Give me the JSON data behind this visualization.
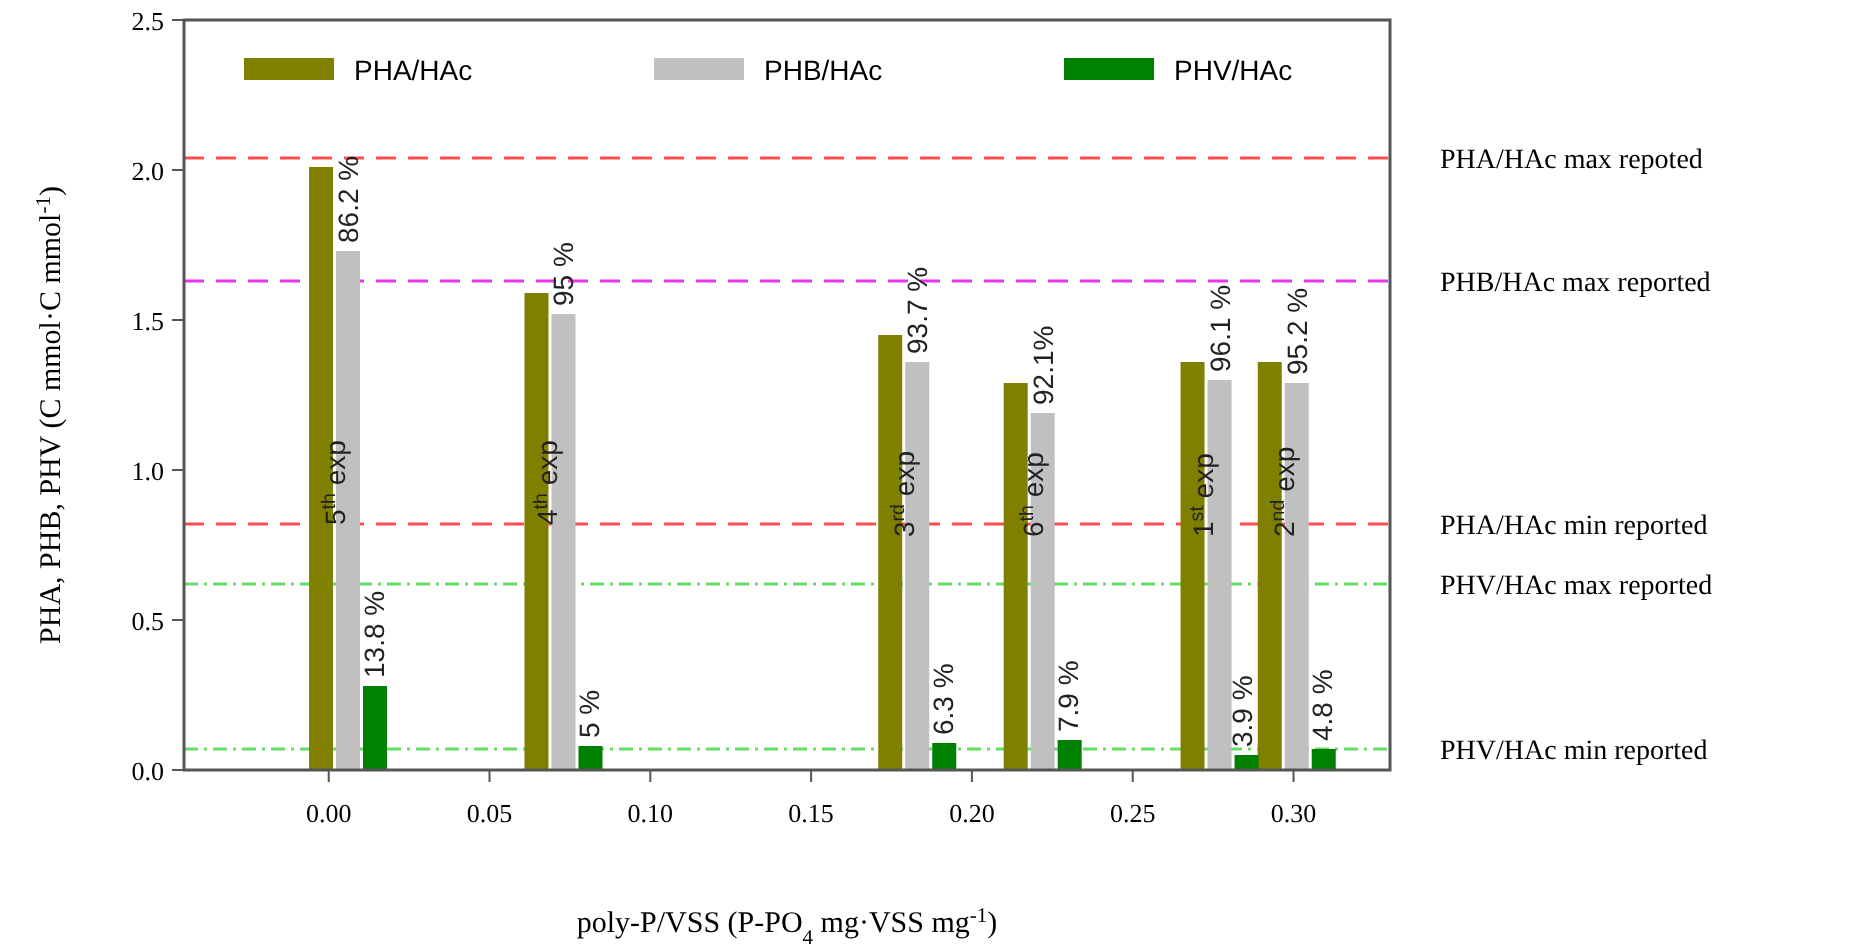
{
  "chart_data": {
    "type": "bar",
    "xlabel": "poly-P/VSS (P-PO$_{4}$ mg·VSS mg$^{-1}$)",
    "ylabel": "PHA, PHB, PHV (C mmol·C mmol$^{-1}$)",
    "x": [
      0.006,
      0.073,
      0.183,
      0.222,
      0.277,
      0.301
    ],
    "series": [
      {
        "name": "PHA/HAc",
        "color": "#808000",
        "values": [
          2.01,
          1.59,
          1.45,
          1.29,
          1.36,
          1.36
        ]
      },
      {
        "name": "PHB/HAc",
        "color": "#c0c0c0",
        "values": [
          1.73,
          1.52,
          1.36,
          1.19,
          1.3,
          1.29
        ]
      },
      {
        "name": "PHV/HAc",
        "color": "#008000",
        "values": [
          0.28,
          0.08,
          0.09,
          0.1,
          0.05,
          0.07
        ]
      }
    ],
    "xlim": [
      -0.045,
      0.33
    ],
    "xticks": [
      {
        "value": 0,
        "label": "0.00"
      },
      0.05,
      {
        "value": 0.1,
        "label": "0.10"
      },
      0.15,
      {
        "value": 0.2,
        "label": "0.20"
      },
      0.25,
      {
        "value": 0.3,
        "label": "0.30"
      }
    ],
    "ylim": [
      0,
      2.5
    ],
    "yticks": [
      {
        "value": 0,
        "label": "0.0"
      },
      0.5,
      {
        "value": 1,
        "label": "1.0"
      },
      1.5,
      {
        "value": 2,
        "label": "2.0"
      },
      2.5
    ],
    "ref_lines": [
      {
        "axis": "y",
        "value": 2.04,
        "label": "PHA/HAc max repoted",
        "color": "#ff4d4d",
        "line_style": "dashed"
      },
      {
        "axis": "y",
        "value": 1.63,
        "label": "PHB/HAc max reported",
        "color": "#ee33ee",
        "line_style": "dashed"
      },
      {
        "axis": "y",
        "value": 0.82,
        "label": "PHA/HAc min reported",
        "color": "#ff4d4d",
        "line_style": "dashed"
      },
      {
        "axis": "y",
        "value": 0.62,
        "label": "PHV/HAc max reported",
        "color": "#66dd66",
        "line_style": "dotted"
      },
      {
        "axis": "y",
        "value": 0.07,
        "label": "PHV/HAc min reported",
        "color": "#66dd66",
        "line_style": "dotted"
      }
    ],
    "annotations": [
      {
        "text": "86.2 %",
        "x": 0.006,
        "y": 1.73
      },
      {
        "text": "13.8 %",
        "x": 0.014,
        "y": 0.28
      },
      {
        "text": "5$^{th}$ exp",
        "x": 0.002,
        "y": 0.79
      },
      {
        "text": "95 %",
        "x": 0.073,
        "y": 1.52
      },
      {
        "text": "5 %",
        "x": 0.081,
        "y": 0.08
      },
      {
        "text": "4$^{th}$ exp",
        "x": 0.068,
        "y": 0.79
      },
      {
        "text": "93.7 %",
        "x": 0.183,
        "y": 1.36
      },
      {
        "text": "6.3 %",
        "x": 0.191,
        "y": 0.09
      },
      {
        "text": "3$^{rd}$ exp",
        "x": 0.179,
        "y": 0.75
      },
      {
        "text": "92.1%",
        "x": 0.222,
        "y": 1.19
      },
      {
        "text": "7.9 %",
        "x": 0.23,
        "y": 0.1
      },
      {
        "text": "6$^{th}$ exp",
        "x": 0.219,
        "y": 0.75
      },
      {
        "text": "96.1 %",
        "x": 0.277,
        "y": 1.3
      },
      {
        "text": "3.9 %",
        "x": 0.284,
        "y": 0.05
      },
      {
        "text": "1$^{st}$ exp",
        "x": 0.272,
        "y": 0.75
      },
      {
        "text": "95.2 %",
        "x": 0.301,
        "y": 1.29
      },
      {
        "text": "4.8 %",
        "x": 0.309,
        "y": 0.07
      },
      {
        "text": "2$^{nd}$ exp",
        "x": 0.297,
        "y": 0.75
      }
    ],
    "legend": "top",
    "grid": false
  }
}
